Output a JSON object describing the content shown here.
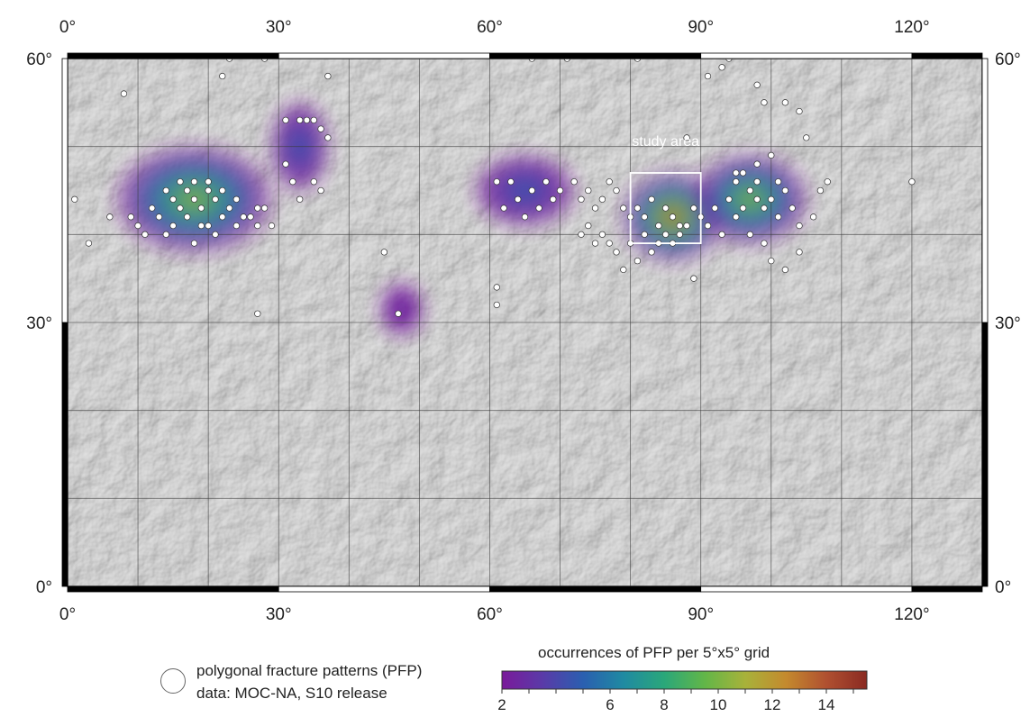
{
  "map": {
    "lon_range": [
      0,
      130
    ],
    "lat_range": [
      0,
      60
    ],
    "x_tick_values": [
      0,
      30,
      60,
      90,
      120
    ],
    "x_tick_labels": [
      "0°",
      "30°",
      "60°",
      "90°",
      "120°"
    ],
    "y_tick_values": [
      0,
      30,
      60
    ],
    "y_tick_labels": [
      "0°",
      "30°",
      "60°"
    ],
    "gridlines": true,
    "grid_spacing_deg": 10,
    "basemap": "grey shaded-relief cratered terrain"
  },
  "study_area": {
    "label": "study area",
    "lon_range": [
      80,
      90
    ],
    "lat_range": [
      39,
      47
    ]
  },
  "density_clusters": [
    {
      "lon": 18,
      "lat": 44,
      "peak": 11,
      "rx_deg": 11,
      "ry_deg": 6
    },
    {
      "lon": 33,
      "lat": 50,
      "peak": 5,
      "rx_deg": 4,
      "ry_deg": 5
    },
    {
      "lon": 47.5,
      "lat": 31.5,
      "peak": 3,
      "rx_deg": 3,
      "ry_deg": 3
    },
    {
      "lon": 65,
      "lat": 45,
      "peak": 5,
      "rx_deg": 7,
      "ry_deg": 4
    },
    {
      "lon": 86,
      "lat": 42,
      "peak": 14,
      "rx_deg": 7,
      "ry_deg": 5
    },
    {
      "lon": 97,
      "lat": 44,
      "peak": 11,
      "rx_deg": 8,
      "ry_deg": 5
    }
  ],
  "pfp_points": [
    [
      8,
      56
    ],
    [
      1,
      44
    ],
    [
      3,
      39
    ],
    [
      10,
      41
    ],
    [
      12,
      43
    ],
    [
      14,
      45
    ],
    [
      15,
      44
    ],
    [
      16,
      43
    ],
    [
      17,
      45
    ],
    [
      18,
      44
    ],
    [
      19,
      43
    ],
    [
      20,
      45
    ],
    [
      21,
      44
    ],
    [
      22,
      42
    ],
    [
      23,
      43
    ],
    [
      24,
      41
    ],
    [
      25,
      42
    ],
    [
      13,
      42
    ],
    [
      15,
      41
    ],
    [
      17,
      42
    ],
    [
      19,
      41
    ],
    [
      21,
      40
    ],
    [
      16,
      46
    ],
    [
      18,
      46
    ],
    [
      20,
      46
    ],
    [
      22,
      45
    ],
    [
      24,
      44
    ],
    [
      26,
      42
    ],
    [
      27,
      41
    ],
    [
      11,
      40
    ],
    [
      14,
      40
    ],
    [
      18,
      39
    ],
    [
      20,
      41
    ],
    [
      6,
      42
    ],
    [
      9,
      42
    ],
    [
      27,
      43
    ],
    [
      28,
      43
    ],
    [
      29,
      41
    ],
    [
      23,
      60
    ],
    [
      22,
      58
    ],
    [
      28,
      60
    ],
    [
      37,
      58
    ],
    [
      31,
      53
    ],
    [
      33,
      53
    ],
    [
      34,
      53
    ],
    [
      35,
      53
    ],
    [
      36,
      52
    ],
    [
      37,
      51
    ],
    [
      32,
      46
    ],
    [
      35,
      46
    ],
    [
      36,
      45
    ],
    [
      33,
      44
    ],
    [
      31,
      48
    ],
    [
      45,
      38
    ],
    [
      47,
      31
    ],
    [
      27,
      31
    ],
    [
      61,
      46
    ],
    [
      63,
      46
    ],
    [
      64,
      44
    ],
    [
      66,
      45
    ],
    [
      67,
      43
    ],
    [
      68,
      46
    ],
    [
      69,
      44
    ],
    [
      70,
      45
    ],
    [
      62,
      43
    ],
    [
      65,
      42
    ],
    [
      72,
      46
    ],
    [
      73,
      44
    ],
    [
      74,
      45
    ],
    [
      75,
      43
    ],
    [
      76,
      44
    ],
    [
      77,
      46
    ],
    [
      78,
      45
    ],
    [
      79,
      43
    ],
    [
      73,
      40
    ],
    [
      74,
      41
    ],
    [
      75,
      39
    ],
    [
      76,
      40
    ],
    [
      77,
      39
    ],
    [
      78,
      38
    ],
    [
      80,
      42
    ],
    [
      81,
      43
    ],
    [
      82,
      42
    ],
    [
      83,
      44
    ],
    [
      84,
      41
    ],
    [
      85,
      43
    ],
    [
      86,
      42
    ],
    [
      87,
      40
    ],
    [
      88,
      41
    ],
    [
      89,
      43
    ],
    [
      82,
      40
    ],
    [
      84,
      39
    ],
    [
      85,
      40
    ],
    [
      86,
      39
    ],
    [
      87,
      41
    ],
    [
      83,
      38
    ],
    [
      80,
      39
    ],
    [
      81,
      37
    ],
    [
      90,
      42
    ],
    [
      91,
      41
    ],
    [
      92,
      43
    ],
    [
      93,
      40
    ],
    [
      94,
      44
    ],
    [
      95,
      42
    ],
    [
      96,
      43
    ],
    [
      97,
      45
    ],
    [
      98,
      44
    ],
    [
      99,
      43
    ],
    [
      100,
      44
    ],
    [
      101,
      42
    ],
    [
      102,
      45
    ],
    [
      103,
      43
    ],
    [
      104,
      41
    ],
    [
      96,
      47
    ],
    [
      98,
      48
    ],
    [
      100,
      49
    ],
    [
      101,
      46
    ],
    [
      95,
      46
    ],
    [
      97,
      40
    ],
    [
      99,
      39
    ],
    [
      100,
      37
    ],
    [
      102,
      36
    ],
    [
      104,
      38
    ],
    [
      106,
      42
    ],
    [
      107,
      45
    ],
    [
      108,
      46
    ],
    [
      105,
      51
    ],
    [
      104,
      54
    ],
    [
      102,
      55
    ],
    [
      99,
      55
    ],
    [
      98,
      57
    ],
    [
      93,
      59
    ],
    [
      94,
      60
    ],
    [
      91,
      58
    ],
    [
      88,
      51
    ],
    [
      66,
      60
    ],
    [
      71,
      60
    ],
    [
      81,
      60
    ],
    [
      61,
      34
    ],
    [
      61,
      32
    ],
    [
      95,
      47
    ],
    [
      98,
      46
    ],
    [
      79,
      36
    ],
    [
      89,
      35
    ],
    [
      120,
      46
    ]
  ],
  "legend": {
    "symbol_label": "polygonal fracture patterns (PFP)",
    "source_label": "data: MOC-NA, S10 release"
  },
  "colorbar": {
    "title": "occurrences of PFP per 5°x5° grid",
    "range": [
      2,
      15.5
    ],
    "tick_values": [
      2,
      6,
      8,
      10,
      12,
      14
    ],
    "tick_labels": [
      "2",
      "6",
      "8",
      "10",
      "12",
      "14"
    ],
    "colors": [
      "#7a1a9a",
      "#5a3aa8",
      "#2a5fb0",
      "#1f8aa2",
      "#2aa77a",
      "#62b648",
      "#a8b23a",
      "#c48a2e",
      "#b05030",
      "#8a2a22"
    ]
  }
}
